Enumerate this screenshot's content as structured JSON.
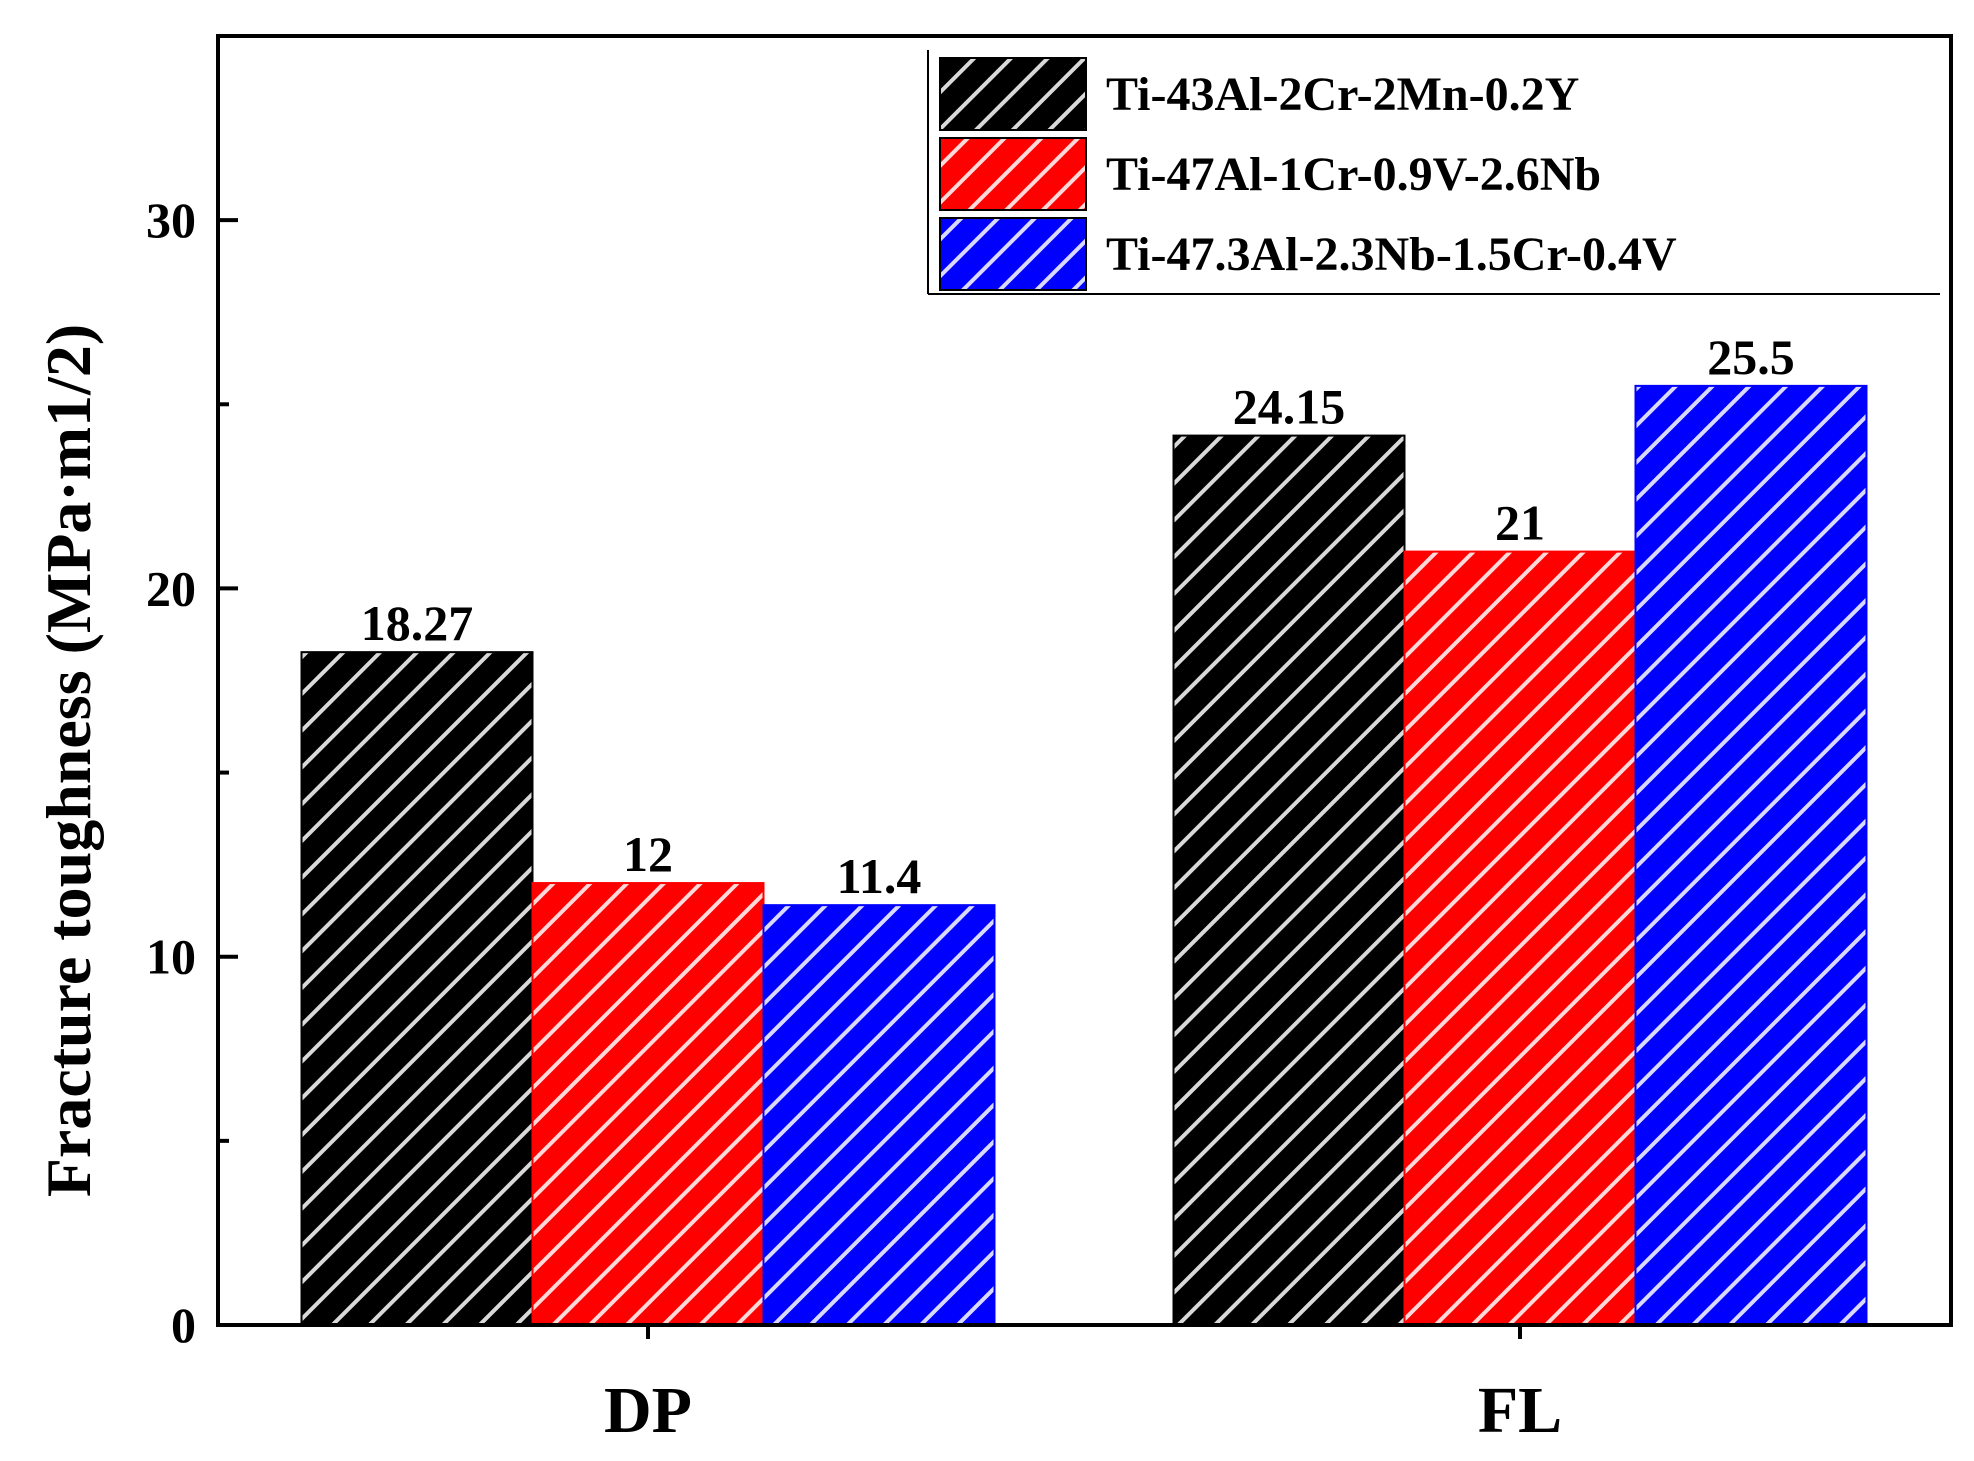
{
  "chart_data": {
    "type": "bar",
    "title": "",
    "xlabel": "",
    "ylabel": "Fracture toughness (MPa·m1/2)",
    "ylim": [
      0,
      35
    ],
    "yticks": [
      0,
      10,
      20,
      30
    ],
    "categories": [
      "DP",
      "FL"
    ],
    "series": [
      {
        "name": "Ti-43Al-2Cr-2Mn-0.2Y",
        "color": "#000000",
        "values": [
          18.27,
          24.15
        ],
        "labels": [
          "18.27",
          "24.15"
        ]
      },
      {
        "name": "Ti-47Al-1Cr-0.9V-2.6Nb",
        "color": "#ff0000",
        "values": [
          12,
          21
        ],
        "labels": [
          "12",
          "21"
        ]
      },
      {
        "name": "Ti-47.3Al-2.3Nb-1.5Cr-0.4V",
        "color": "#0000ff",
        "values": [
          11.4,
          25.5
        ],
        "labels": [
          "11.4",
          "25.5"
        ]
      }
    ],
    "hatch": "diagonal-white",
    "grid": false,
    "legend_position": "top-right"
  }
}
